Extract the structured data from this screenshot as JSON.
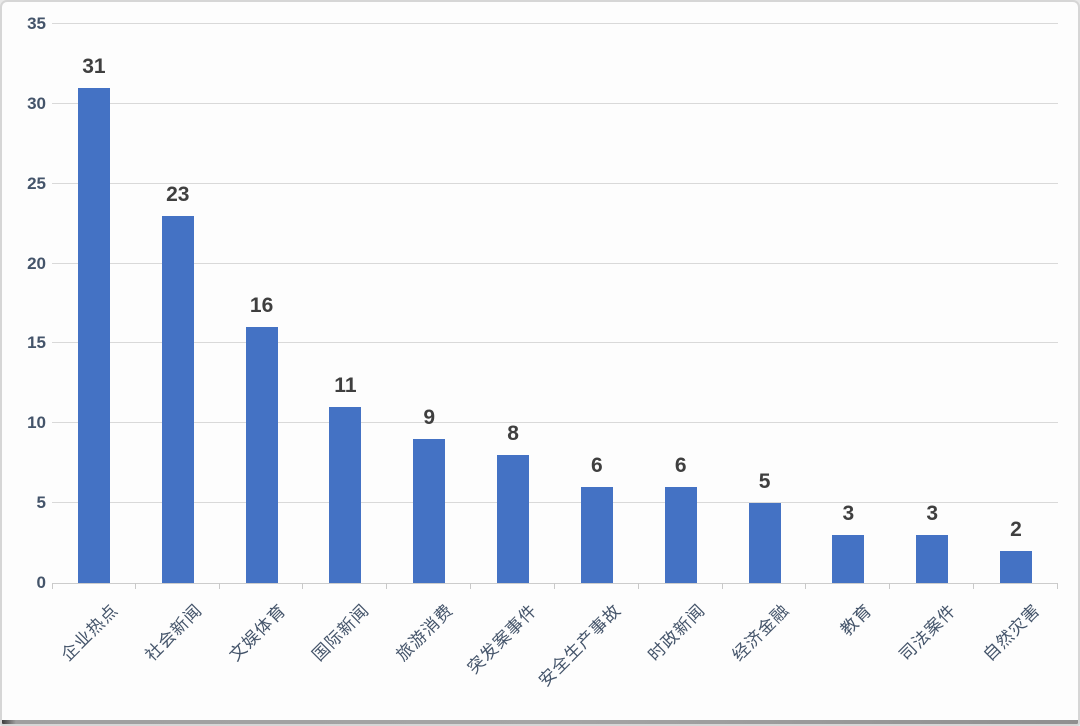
{
  "chart_data": {
    "type": "bar",
    "title": "",
    "xlabel": "",
    "ylabel": "",
    "categories": [
      "企业热点",
      "社会新闻",
      "文娱体育",
      "国际新闻",
      "旅游消费",
      "突发案事件",
      "安全生产事故",
      "时政新闻",
      "经济金融",
      "教育",
      "司法案件",
      "自然灾害"
    ],
    "values": [
      31,
      23,
      16,
      11,
      9,
      8,
      6,
      6,
      5,
      3,
      3,
      2
    ],
    "data_labels": [
      "31",
      "23",
      "16",
      "11",
      "9",
      "8",
      "6",
      "6",
      "5",
      "3",
      "3",
      "2"
    ],
    "ylim": [
      0,
      35
    ],
    "ytick_step": 5,
    "ytick_labels": [
      "0",
      "5",
      "10",
      "15",
      "20",
      "25",
      "30",
      "35"
    ],
    "grid": true,
    "legend": false,
    "colors": {
      "bar": "#4472C4",
      "gridline": "#d9d9d9",
      "axis_labels": "#44546A",
      "data_labels": "#3f3f3f",
      "background": "#fdfdfd"
    }
  }
}
